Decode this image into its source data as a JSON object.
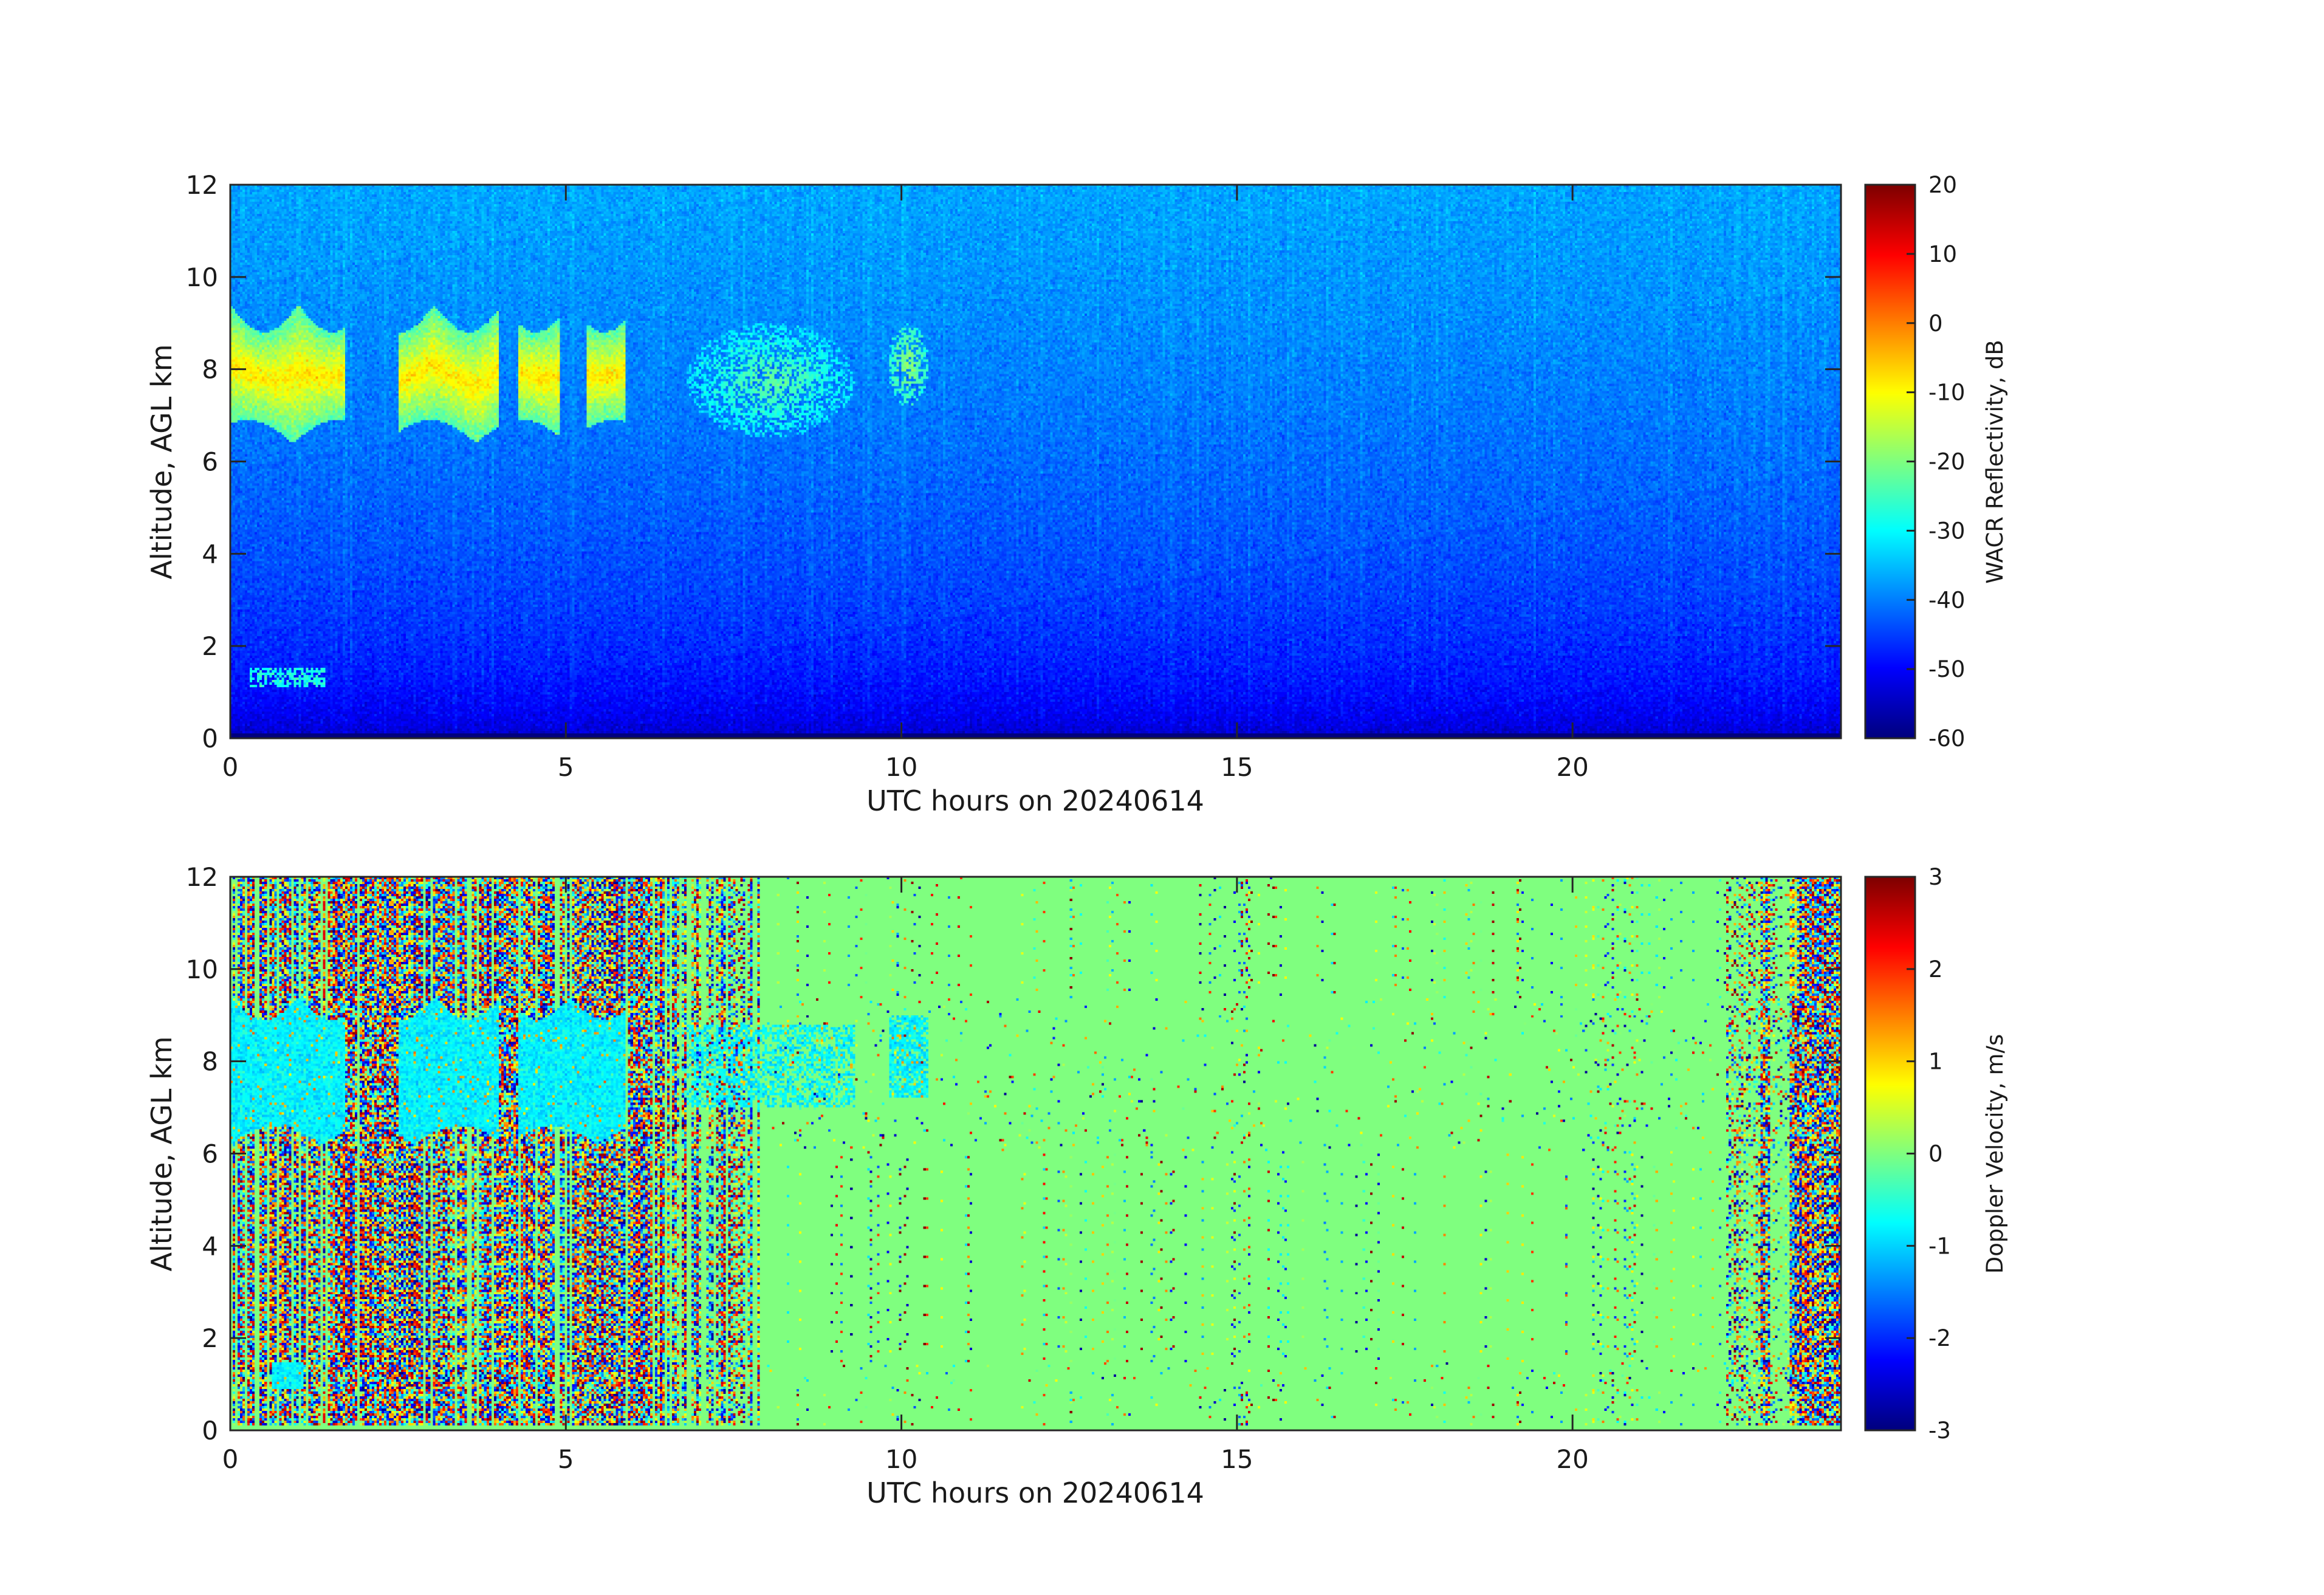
{
  "chart_data": [
    {
      "type": "heatmap",
      "title": "",
      "xlabel": "UTC hours on 20240614",
      "ylabel": "Altitude, AGL km",
      "xlim": [
        0,
        24
      ],
      "ylim": [
        0,
        12
      ],
      "x_ticks": [
        0,
        5,
        10,
        15,
        20
      ],
      "y_ticks": [
        0,
        2,
        4,
        6,
        8,
        10,
        12
      ],
      "colorbar": {
        "label": "WACR Reflectivity, dB",
        "range": [
          -60,
          20
        ],
        "ticks": [
          20,
          10,
          0,
          -10,
          -20,
          -30,
          -40,
          -50,
          -60
        ],
        "colormap": "jet"
      },
      "features": {
        "noise_floor_near_surface_db": -58,
        "noise_floor_top_db": -37,
        "cirrus_layer": {
          "x_range_h": [
            0.0,
            5.9
          ],
          "altitude_km": [
            6.4,
            9.4
          ],
          "peak_db": -8
        },
        "weak_cloud_patches": [
          {
            "x_range_h": [
              6.8,
              9.3
            ],
            "altitude_km": [
              6.5,
              9.0
            ],
            "peak_db": -22
          },
          {
            "x_range_h": [
              9.8,
              10.4
            ],
            "altitude_km": [
              7.2,
              9.0
            ],
            "peak_db": -18
          }
        ],
        "low_cloud": {
          "x_range_h": [
            0.3,
            1.4
          ],
          "altitude_km": [
            1.1,
            1.5
          ],
          "peak_db": -28
        }
      }
    },
    {
      "type": "heatmap",
      "title": "",
      "xlabel": "UTC hours on 20240614",
      "ylabel": "Altitude, AGL km",
      "xlim": [
        0,
        24
      ],
      "ylim": [
        0,
        12
      ],
      "x_ticks": [
        0,
        5,
        10,
        15,
        20
      ],
      "y_ticks": [
        0,
        2,
        4,
        6,
        8,
        10,
        12
      ],
      "colorbar": {
        "label": "Doppler Velocity, m/s",
        "range": [
          -3,
          3
        ],
        "ticks": [
          3,
          2,
          1,
          0,
          -1,
          -2,
          -3
        ],
        "colormap": "jet"
      },
      "features": {
        "background_velocity_ms": 0,
        "noisy_period_h": [
          0,
          8
        ],
        "noisy_period_end_h": [
          22.8,
          24
        ],
        "cloud_velocity_ms": -0.8
      }
    }
  ]
}
